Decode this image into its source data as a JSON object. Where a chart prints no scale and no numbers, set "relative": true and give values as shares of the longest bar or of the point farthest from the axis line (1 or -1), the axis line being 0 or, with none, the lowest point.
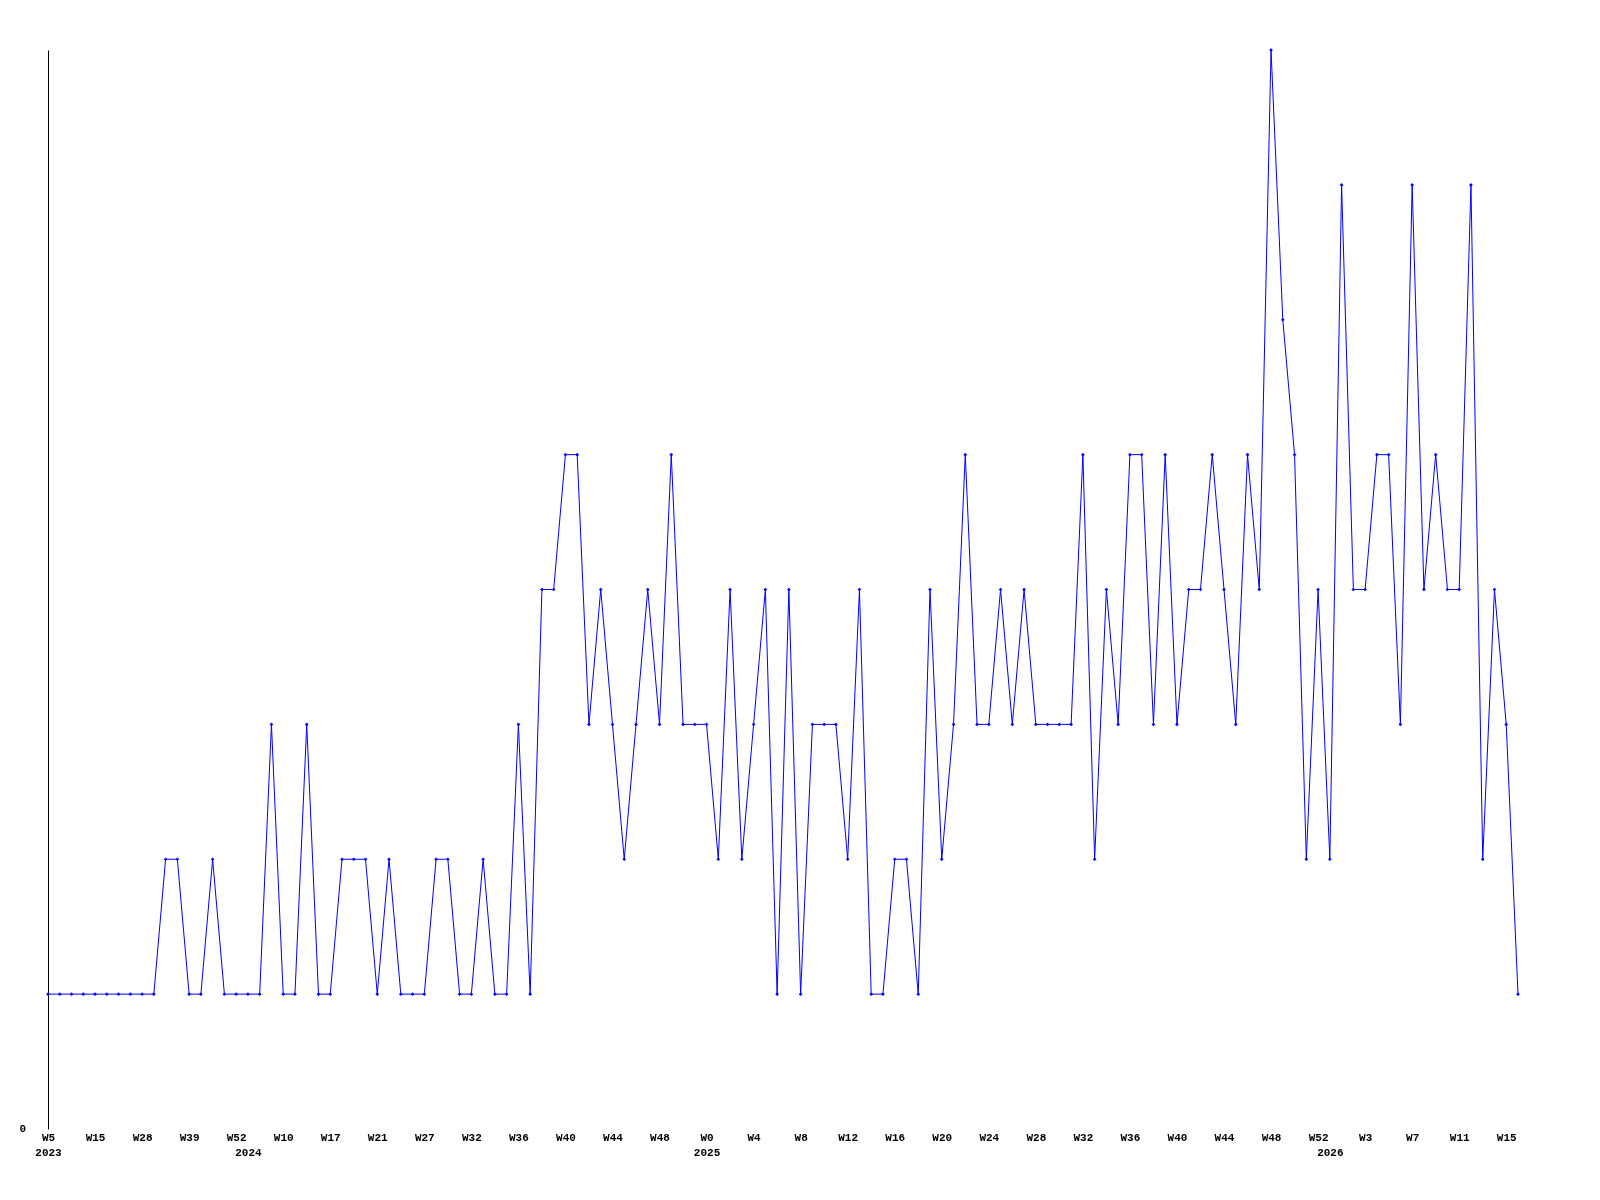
{
  "chart_data": {
    "type": "line",
    "relative": true,
    "color": "#0000ff",
    "marker": "diamond",
    "line_style": "solid",
    "grid": false,
    "categories": [
      "W5\n2023",
      null,
      null,
      null,
      "W15",
      null,
      null,
      null,
      "W28",
      null,
      null,
      null,
      "W39",
      null,
      null,
      null,
      "W52",
      "\n2024",
      null,
      null,
      "W10",
      null,
      null,
      null,
      "W17",
      null,
      null,
      null,
      "W21",
      null,
      null,
      null,
      "W27",
      null,
      null,
      null,
      "W32",
      null,
      null,
      null,
      "W36",
      null,
      null,
      null,
      "W40",
      null,
      null,
      null,
      "W44",
      null,
      null,
      null,
      "W48",
      null,
      null,
      null,
      "W0\n2025",
      null,
      null,
      null,
      "W4",
      null,
      null,
      null,
      "W8",
      null,
      null,
      null,
      "W12",
      null,
      null,
      null,
      "W16",
      null,
      null,
      null,
      "W20",
      null,
      null,
      null,
      "W24",
      null,
      null,
      null,
      "W28",
      null,
      null,
      null,
      "W32",
      null,
      null,
      null,
      "W36",
      null,
      null,
      null,
      "W40",
      null,
      null,
      null,
      "W44",
      null,
      null,
      null,
      "W48",
      null,
      null,
      null,
      "W52",
      "\n2026",
      null,
      null,
      "W3",
      null,
      null,
      null,
      "W7",
      null,
      null,
      null,
      "W11",
      null,
      null,
      null,
      "W15",
      null
    ],
    "values": [
      0.125,
      0.125,
      0.125,
      0.125,
      0.125,
      0.125,
      0.125,
      0.125,
      0.125,
      0.125,
      0.25,
      0.25,
      0.125,
      0.125,
      0.25,
      0.125,
      0.125,
      0.125,
      0.125,
      0.375,
      0.125,
      0.125,
      0.375,
      0.125,
      0.125,
      0.25,
      0.25,
      0.25,
      0.125,
      0.25,
      0.125,
      0.125,
      0.125,
      0.25,
      0.25,
      0.125,
      0.125,
      0.25,
      0.125,
      0.125,
      0.375,
      0.125,
      0.5,
      0.5,
      0.625,
      0.625,
      0.375,
      0.5,
      0.375,
      0.25,
      0.375,
      0.5,
      0.375,
      0.625,
      0.375,
      0.375,
      0.375,
      0.25,
      0.5,
      0.25,
      0.375,
      0.5,
      0.125,
      0.5,
      0.125,
      0.375,
      0.375,
      0.375,
      0.25,
      0.5,
      0.125,
      0.125,
      0.25,
      0.25,
      0.125,
      0.5,
      0.25,
      0.375,
      0.625,
      0.375,
      0.375,
      0.5,
      0.375,
      0.5,
      0.375,
      0.375,
      0.375,
      0.375,
      0.625,
      0.25,
      0.5,
      0.375,
      0.625,
      0.625,
      0.375,
      0.625,
      0.375,
      0.5,
      0.5,
      0.625,
      0.5,
      0.375,
      0.625,
      0.5,
      1,
      0.75,
      0.625,
      0.25,
      0.5,
      0.25,
      0.875,
      0.5,
      0.5,
      0.625,
      0.625,
      0.375,
      0.875,
      0.5,
      0.625,
      0.5,
      0.5,
      0.875,
      0.25,
      0.5,
      0.375,
      0.125
    ],
    "annotations": [
      "0"
    ]
  }
}
